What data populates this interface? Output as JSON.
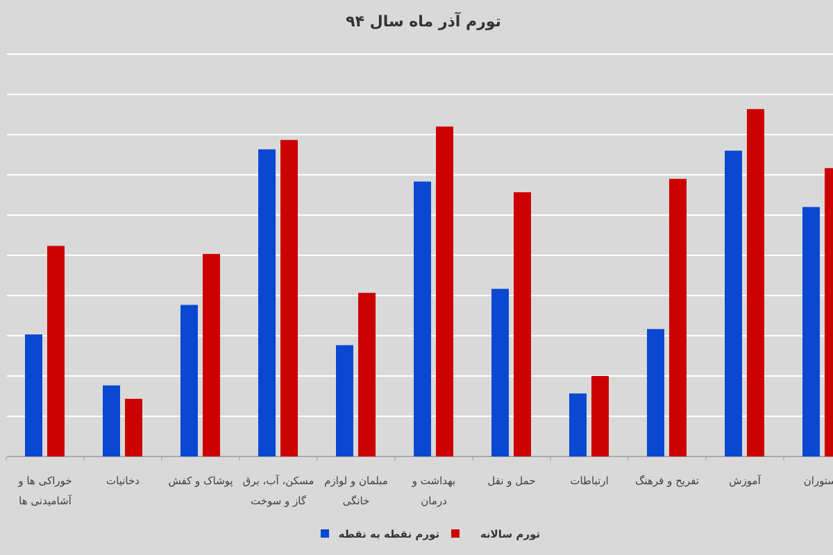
{
  "chart_data": {
    "type": "bar",
    "title": "تورم آذر ماه سال ۹۴",
    "xlabel": "",
    "ylabel": "",
    "ylim": [
      0,
      30
    ],
    "grid": true,
    "legend_position": "bottom",
    "categories": [
      [
        "خوراکی ها و",
        "آشامیدنی ها"
      ],
      [
        "دخانیات"
      ],
      [
        "پوشاک و کفش"
      ],
      [
        "مسکن، آب، برق",
        "گاز و سوخت"
      ],
      [
        "مبلمان و لوازم",
        "خانگی"
      ],
      [
        "بهداشت و",
        "درمان"
      ],
      [
        "حمل و نقل"
      ],
      [
        "ارتباطات"
      ],
      [
        "تفریح و فرهنگ"
      ],
      [
        "آموزش"
      ],
      [
        "رستوران"
      ]
    ],
    "series": [
      {
        "name": "تورم نقطه به نقطه",
        "color": "#0a48d1",
        "values": [
          9.1,
          5.3,
          11.3,
          22.9,
          8.3,
          20.5,
          12.5,
          4.7,
          9.5,
          22.8,
          18.6
        ]
      },
      {
        "name": "تورم سالانه",
        "color": "#cc0000",
        "values": [
          15.7,
          4.3,
          15.1,
          23.6,
          12.2,
          24.6,
          19.7,
          6.0,
          20.7,
          25.9,
          21.5
        ]
      }
    ]
  }
}
